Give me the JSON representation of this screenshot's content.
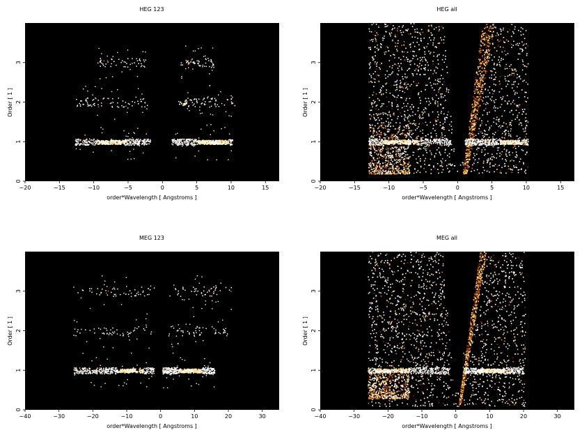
{
  "chart_data": [
    {
      "type": "heatmap",
      "title": "HEG 123",
      "xlabel": "order*Wavelength [ Angstroms ]",
      "ylabel": "Order [ 1 ]",
      "xlim": [
        -20,
        17
      ],
      "ylim": [
        0,
        4
      ],
      "xticks": [
        -20,
        -15,
        -10,
        -5,
        0,
        5,
        10,
        15
      ],
      "yticks": [
        0,
        1,
        2,
        3
      ],
      "background": "#000000",
      "bands": [
        {
          "order": 1,
          "x_ranges": [
            [
              -12.8,
              -1.8
            ],
            [
              1.3,
              10.2
            ]
          ],
          "hot_ranges": [
            [
              -9.5,
              -5.5
            ],
            [
              5.0,
              9.5
            ]
          ],
          "level": "dense"
        },
        {
          "order": 2,
          "x_ranges": [
            [
              -13.0,
              -2.0
            ],
            [
              2.0,
              10.5
            ]
          ],
          "hot_ranges": [
            [
              2.5,
              3.5
            ]
          ],
          "level": "medium"
        },
        {
          "order": 3,
          "x_ranges": [
            [
              -9.5,
              -2.5
            ],
            [
              2.5,
              7.5
            ]
          ],
          "hot_ranges": [
            [
              3.0,
              4.0
            ]
          ],
          "level": "sparse"
        }
      ]
    },
    {
      "type": "heatmap",
      "title": "HEG all",
      "xlabel": "order*Wavelength [ Angstroms ]",
      "ylabel": "Order [ 1 ]",
      "xlim": [
        -20,
        17
      ],
      "ylim": [
        0,
        4
      ],
      "xticks": [
        -20,
        -15,
        -10,
        -5,
        0,
        5,
        10,
        15
      ],
      "yticks": [
        0,
        1,
        2,
        3
      ],
      "background": "#000000",
      "bands": [
        {
          "order": 1,
          "x_ranges": [
            [
              -13.0,
              -1.0
            ],
            [
              1.0,
              10.2
            ]
          ],
          "hot_ranges": [
            [
              -11.0,
              -6.0
            ],
            [
              6.0,
              9.5
            ]
          ],
          "level": "dense"
        }
      ],
      "wedge": {
        "x_left_edge": -13.0,
        "x_right_edge": 10.2,
        "y_bottom": 0.2,
        "y_top": 4.0
      },
      "streak": {
        "x_bottom": 1.0,
        "x_top": 4.5,
        "y_bottom": 0.2,
        "y_top": 4.0
      },
      "lower_left_patch": {
        "x_range": [
          -13.0,
          -7.0
        ],
        "y_range": [
          0.2,
          1.5
        ]
      }
    },
    {
      "type": "heatmap",
      "title": "MEG 123",
      "xlabel": "order*Wavelength [ Angstroms ]",
      "ylabel": "Order [ 1 ]",
      "xlim": [
        -40,
        35
      ],
      "ylim": [
        0,
        4
      ],
      "xticks": [
        -40,
        -30,
        -20,
        -10,
        0,
        10,
        20,
        30
      ],
      "yticks": [
        0,
        1,
        2,
        3
      ],
      "background": "#000000",
      "bands": [
        {
          "order": 1,
          "x_ranges": [
            [
              -26.0,
              -2.0
            ],
            [
              0.5,
              16.0
            ]
          ],
          "hot_ranges": [
            [
              -13.0,
              -5.0
            ],
            [
              5.0,
              12.0
            ]
          ],
          "level": "dense"
        },
        {
          "order": 2,
          "x_ranges": [
            [
              -26.0,
              -2.0
            ],
            [
              2.0,
              20.0
            ]
          ],
          "hot_ranges": [],
          "level": "sparse"
        },
        {
          "order": 3,
          "x_ranges": [
            [
              -26.0,
              -2.0
            ],
            [
              2.0,
              21.0
            ]
          ],
          "hot_ranges": [],
          "level": "sparse"
        }
      ]
    },
    {
      "type": "heatmap",
      "title": "MEG all",
      "xlabel": "order*Wavelength [ Angstroms ]",
      "ylabel": "Order [ 1 ]",
      "xlim": [
        -40,
        35
      ],
      "ylim": [
        0,
        4
      ],
      "xticks": [
        -40,
        -30,
        -20,
        -10,
        0,
        10,
        20,
        30
      ],
      "yticks": [
        0,
        1,
        2,
        3
      ],
      "background": "#000000",
      "bands": [
        {
          "order": 1,
          "x_ranges": [
            [
              -26.0,
              -2.0
            ],
            [
              2.0,
              20.0
            ]
          ],
          "hot_ranges": [
            [
              -24.0,
              -14.0
            ],
            [
              6.0,
              14.0
            ]
          ],
          "level": "dense"
        }
      ],
      "wedge": {
        "x_left_edge": -26.0,
        "x_right_edge": 20.5,
        "y_bottom": 0.1,
        "y_top": 4.0
      },
      "streak": {
        "x_bottom": 1.0,
        "x_top": 8.0,
        "y_bottom": 0.1,
        "y_top": 4.0
      },
      "lower_left_patch": {
        "x_range": [
          -26.0,
          -14.0
        ],
        "y_range": [
          0.3,
          1.0
        ]
      }
    }
  ],
  "colors": {
    "background": "#000000",
    "hot_white": "#ffffff",
    "hot_yellow": "#ffe08a",
    "hot_orange": "#e07a20",
    "hot_red": "#8a2a08"
  }
}
